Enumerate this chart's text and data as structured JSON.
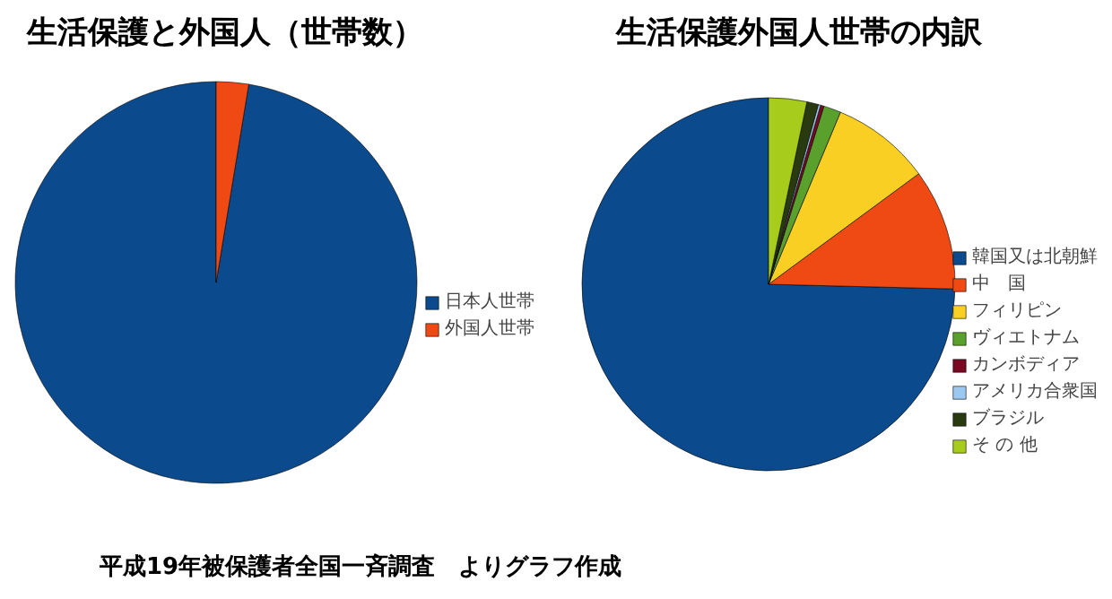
{
  "chart_data": [
    {
      "type": "pie",
      "title": "生活保護と外国人（世帯数）",
      "categories": [
        "日本人世帯",
        "外国人世帯"
      ],
      "values": [
        97.4,
        2.6
      ],
      "colors": [
        "#0b4a8c",
        "#f04a14"
      ],
      "legend": "right"
    },
    {
      "type": "pie",
      "title": "生活保護外国人世帯の内訳",
      "categories": [
        "韓国又は北朝鮮",
        "中　国",
        "フィリピン",
        "ヴィエトナム",
        "カンボディア",
        "アメリカ合衆国",
        "ブラジル",
        "そ の 他"
      ],
      "values": [
        74.6,
        10.5,
        8.6,
        1.5,
        0.3,
        0.2,
        1.0,
        3.3
      ],
      "colors": [
        "#0b4a8c",
        "#f04a14",
        "#f8cf22",
        "#5aa02c",
        "#7a0a22",
        "#9cc8f0",
        "#2a3a10",
        "#a8cc1c"
      ],
      "legend": "right",
      "annotations": [
        "平成19年被保護者全国一斉調査　よりグラフ作成"
      ]
    }
  ]
}
